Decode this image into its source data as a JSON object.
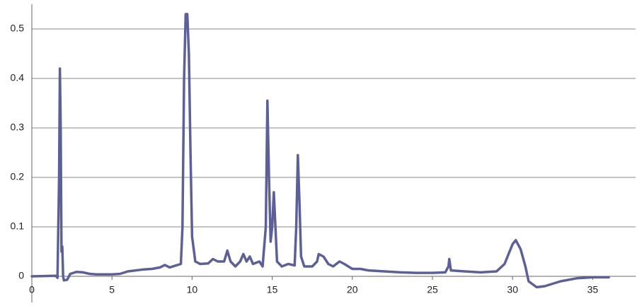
{
  "chart_data": {
    "type": "line",
    "x": [
      0,
      1.5,
      1.6,
      1.7,
      1.75,
      1.8,
      1.85,
      1.9,
      1.95,
      2.0,
      2.2,
      2.4,
      2.8,
      3.2,
      3.6,
      4,
      5,
      5.5,
      6,
      7,
      7.5,
      8,
      8.3,
      8.6,
      9,
      9.3,
      9.4,
      9.5,
      9.6,
      9.7,
      9.8,
      9.9,
      10,
      10.2,
      10.5,
      11,
      11.3,
      11.6,
      12,
      12.2,
      12.4,
      12.7,
      13,
      13.2,
      13.4,
      13.6,
      13.8,
      14.2,
      14.4,
      14.6,
      14.7,
      14.8,
      14.9,
      15,
      15.1,
      15.2,
      15.3,
      15.6,
      16,
      16.4,
      16.5,
      16.6,
      16.7,
      16.8,
      17,
      17.5,
      17.8,
      17.9,
      18.2,
      18.5,
      18.8,
      19.2,
      19.5,
      20,
      20.5,
      21,
      22,
      23,
      24,
      25,
      25.8,
      26,
      26.05,
      26.15,
      27,
      28,
      29,
      29.5,
      30,
      30.2,
      30.5,
      30.8,
      31,
      31.5,
      32,
      33,
      34,
      35,
      36
    ],
    "values": [
      0,
      0.001,
      -0.003,
      0.2,
      0.42,
      0.3,
      0.05,
      0.06,
      0.0,
      -0.008,
      -0.007,
      0.005,
      0.009,
      0.008,
      0.005,
      0.004,
      0.004,
      0.005,
      0.01,
      0.014,
      0.015,
      0.018,
      0.023,
      0.018,
      0.022,
      0.025,
      0.1,
      0.4,
      0.53,
      0.53,
      0.45,
      0.25,
      0.08,
      0.03,
      0.025,
      0.026,
      0.035,
      0.03,
      0.03,
      0.052,
      0.03,
      0.02,
      0.03,
      0.045,
      0.03,
      0.04,
      0.025,
      0.03,
      0.02,
      0.1,
      0.355,
      0.2,
      0.07,
      0.1,
      0.17,
      0.1,
      0.03,
      0.02,
      0.025,
      0.022,
      0.1,
      0.245,
      0.15,
      0.04,
      0.02,
      0.02,
      0.03,
      0.045,
      0.04,
      0.025,
      0.02,
      0.03,
      0.025,
      0.015,
      0.015,
      0.012,
      0.01,
      0.008,
      0.007,
      0.007,
      0.008,
      0.02,
      0.035,
      0.012,
      0.01,
      0.008,
      0.01,
      0.025,
      0.065,
      0.073,
      0.055,
      0.02,
      -0.01,
      -0.022,
      -0.02,
      -0.01,
      -0.004,
      -0.002,
      -0.002
    ],
    "color": "#5d6097",
    "xlim": [
      0,
      37.5
    ],
    "xticks": [
      0,
      5,
      10,
      15,
      20,
      25,
      30,
      35
    ],
    "ylim": [
      -0.03,
      0.55
    ],
    "yticks": [
      0,
      0.1,
      0.2,
      0.3,
      0.4,
      0.5
    ],
    "grid": true
  }
}
